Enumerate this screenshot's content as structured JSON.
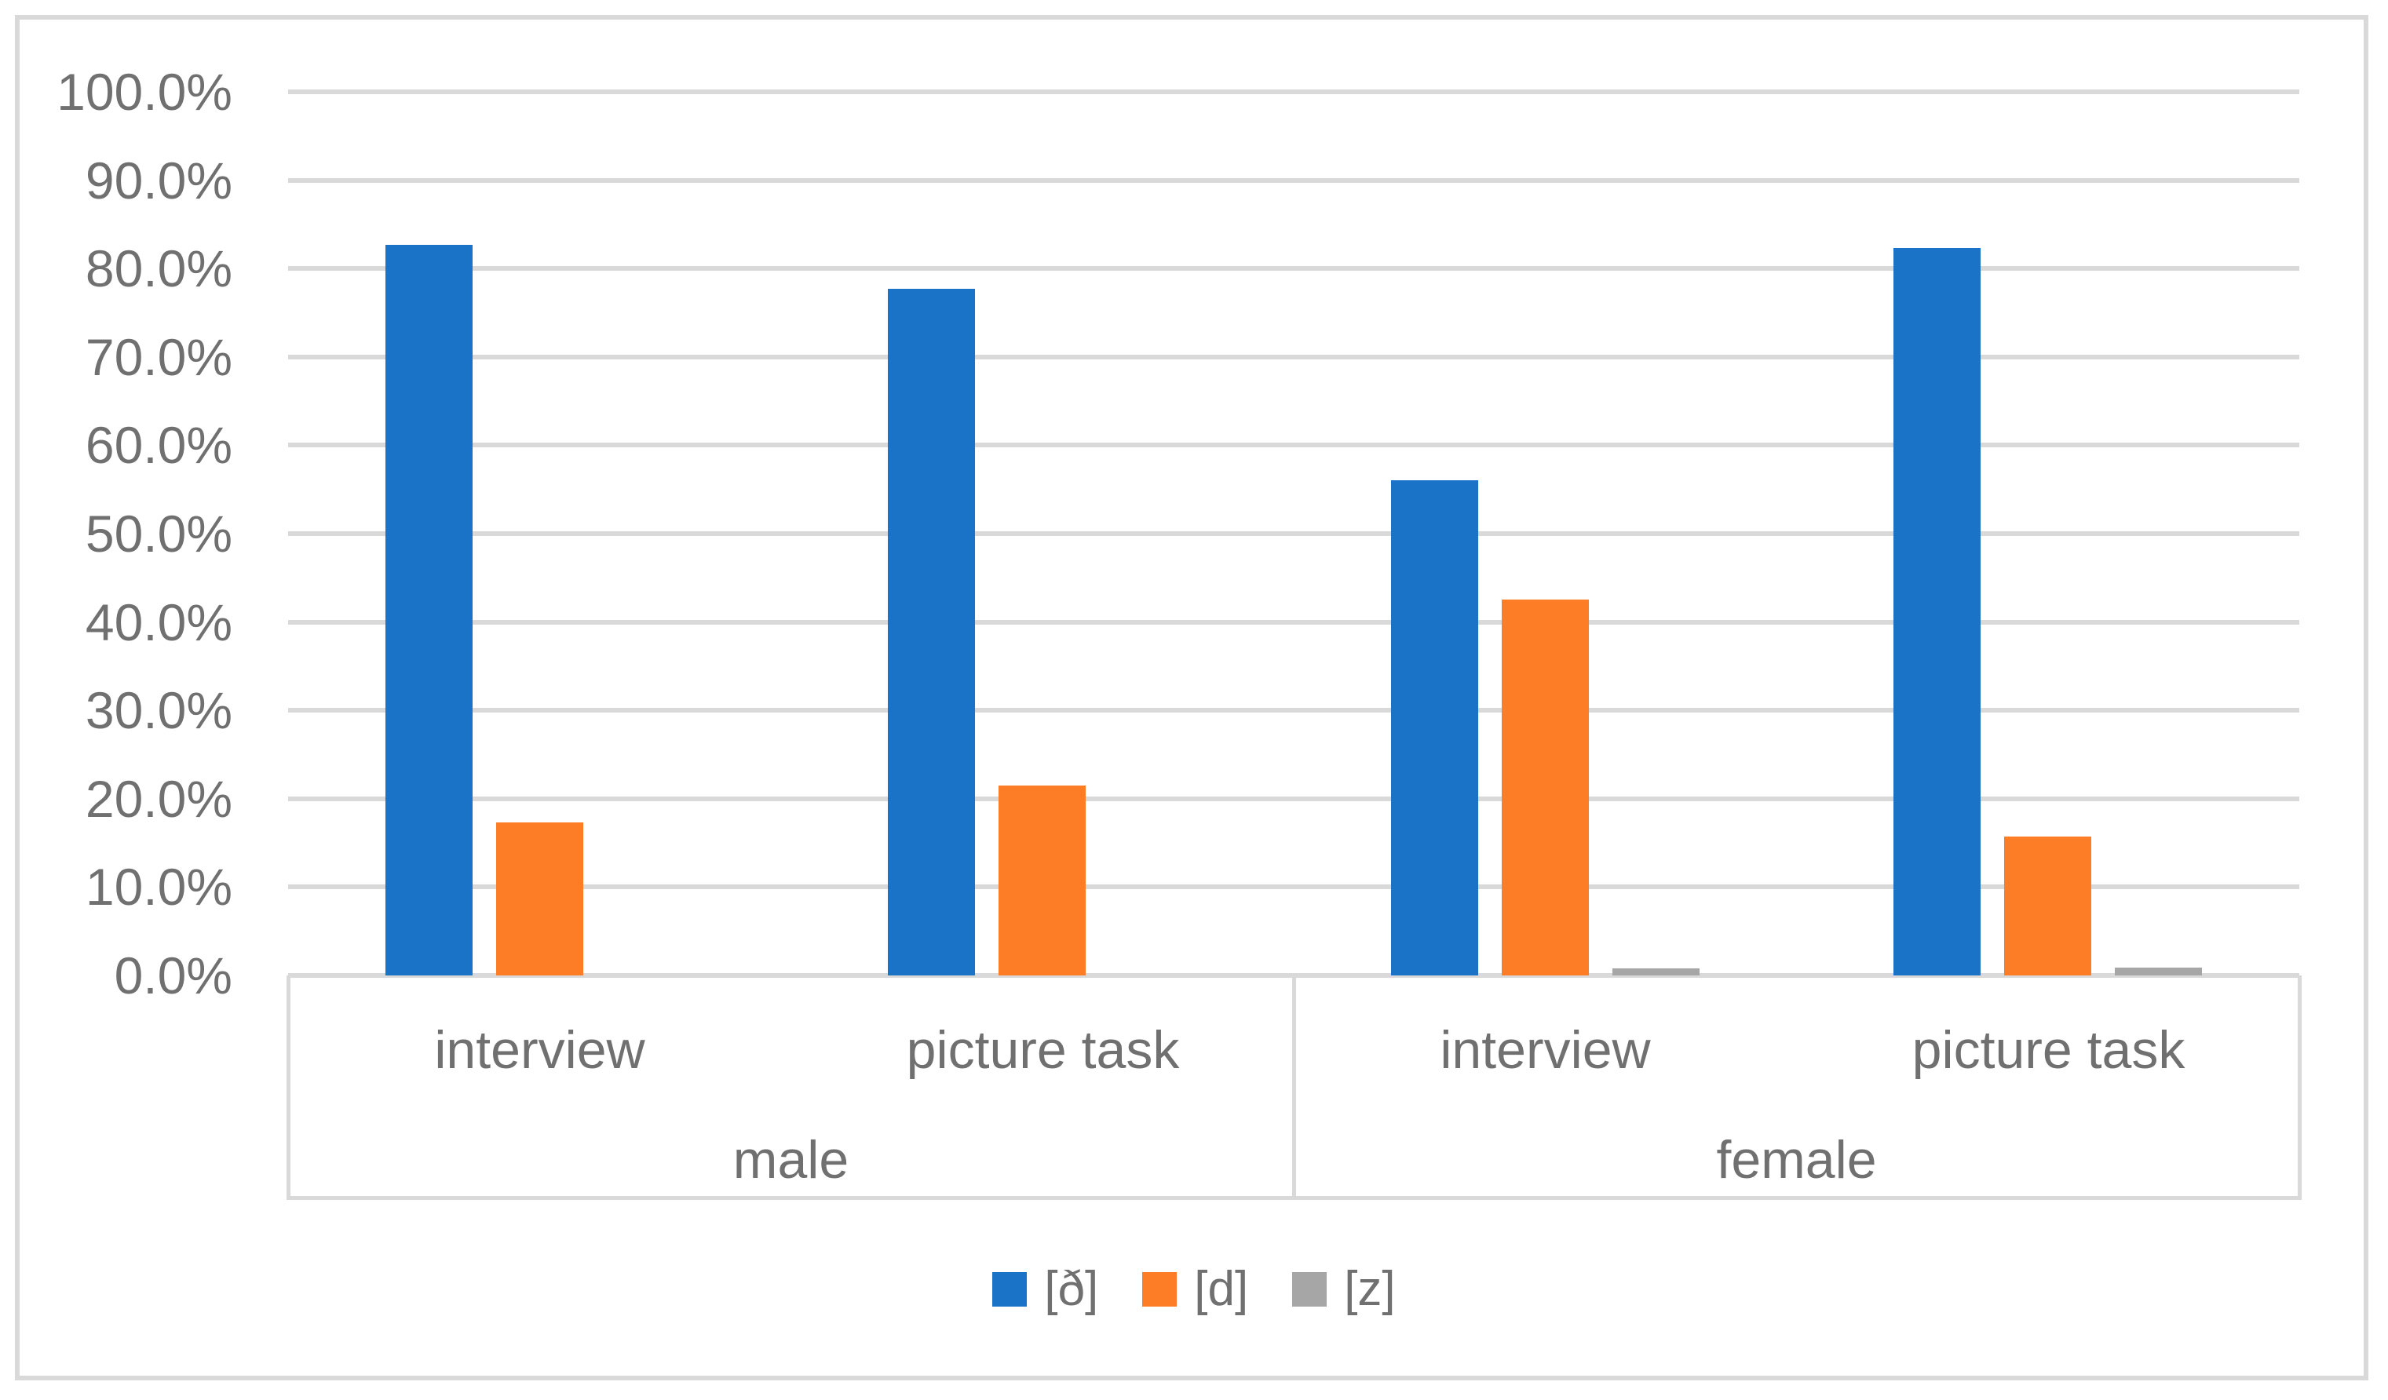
{
  "chart_data": {
    "type": "bar",
    "title": "",
    "xlabel": "",
    "ylabel": "",
    "y_axis": {
      "min": 0,
      "max": 100,
      "step": 10,
      "unit": "%",
      "grid": true,
      "tick_labels": [
        "0.0%",
        "10.0%",
        "20.0%",
        "30.0%",
        "40.0%",
        "50.0%",
        "60.0%",
        "70.0%",
        "80.0%",
        "90.0%",
        "100.0%"
      ]
    },
    "x_axis": {
      "categories": [
        "interview",
        "picture task",
        "interview",
        "picture task"
      ],
      "groups": [
        {
          "label": "male",
          "category_indices": [
            0,
            1
          ]
        },
        {
          "label": "female",
          "category_indices": [
            2,
            3
          ]
        }
      ]
    },
    "series": [
      {
        "name": "[ð]",
        "color": "#1B73C8",
        "values": [
          82.7,
          77.7,
          56.0,
          82.3
        ]
      },
      {
        "name": "[d]",
        "color": "#FC7D26",
        "values": [
          17.3,
          21.5,
          42.5,
          15.7
        ]
      },
      {
        "name": "[z]",
        "color": "#A6A6A6",
        "values": [
          0.0,
          0.0,
          0.8,
          0.9
        ]
      }
    ],
    "legend": {
      "position": "bottom",
      "entries": [
        "[ð]",
        "[d]",
        "[z]"
      ]
    }
  },
  "style": {
    "background": "#FFFFFF",
    "gridline_color": "#D9D9D9",
    "border_color": "#D9D9D9",
    "text_color": "#707070"
  }
}
